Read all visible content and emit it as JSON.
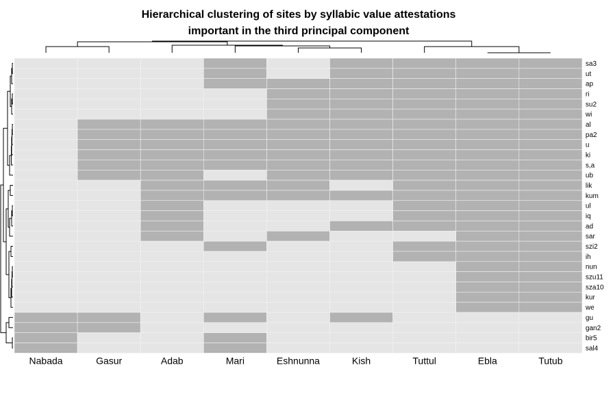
{
  "chart_data": {
    "type": "heatmap",
    "title": [
      "Hierarchical clustering of sites by syllabic value attestations",
      "important in the third principal component"
    ],
    "columns": [
      "Nabada",
      "Gasur",
      "Adab",
      "Mari",
      "Eshnunna",
      "Kish",
      "Tuttul",
      "Ebla",
      "Tutub"
    ],
    "rows": [
      "sa3",
      "ut",
      "ap",
      "ri",
      "su2",
      "wi",
      "al",
      "pa2",
      "u",
      "ki",
      "s,a",
      "ub",
      "lik",
      "kum",
      "ul",
      "iq",
      "ad",
      "sar",
      "szi2",
      "ih",
      "nun",
      "szu11",
      "sza10",
      "kur",
      "we",
      "gu",
      "gan2",
      "bir5",
      "sal4"
    ],
    "value_meaning": "1 = attested (dark grey), 0 = not attested (light grey)",
    "matrix": [
      [
        0,
        0,
        0,
        1,
        0,
        1,
        1,
        1,
        1
      ],
      [
        0,
        0,
        0,
        1,
        0,
        1,
        1,
        1,
        1
      ],
      [
        0,
        0,
        0,
        1,
        1,
        1,
        1,
        1,
        1
      ],
      [
        0,
        0,
        0,
        0,
        1,
        1,
        1,
        1,
        1
      ],
      [
        0,
        0,
        0,
        0,
        1,
        1,
        1,
        1,
        1
      ],
      [
        0,
        0,
        0,
        0,
        1,
        1,
        1,
        1,
        1
      ],
      [
        0,
        1,
        1,
        1,
        1,
        1,
        1,
        1,
        1
      ],
      [
        0,
        1,
        1,
        1,
        1,
        1,
        1,
        1,
        1
      ],
      [
        0,
        1,
        1,
        1,
        1,
        1,
        1,
        1,
        1
      ],
      [
        0,
        1,
        1,
        1,
        1,
        1,
        1,
        1,
        1
      ],
      [
        0,
        1,
        1,
        1,
        1,
        1,
        1,
        1,
        1
      ],
      [
        0,
        1,
        1,
        0,
        1,
        1,
        1,
        1,
        1
      ],
      [
        0,
        0,
        1,
        1,
        1,
        0,
        1,
        1,
        1
      ],
      [
        0,
        0,
        1,
        1,
        1,
        1,
        1,
        1,
        1
      ],
      [
        0,
        0,
        1,
        0,
        0,
        0,
        1,
        1,
        1
      ],
      [
        0,
        0,
        1,
        0,
        0,
        0,
        1,
        1,
        1
      ],
      [
        0,
        0,
        1,
        0,
        0,
        1,
        1,
        1,
        1
      ],
      [
        0,
        0,
        1,
        0,
        1,
        0,
        0,
        1,
        1
      ],
      [
        0,
        0,
        0,
        1,
        0,
        0,
        1,
        1,
        1
      ],
      [
        0,
        0,
        0,
        0,
        0,
        0,
        1,
        1,
        1
      ],
      [
        0,
        0,
        0,
        0,
        0,
        0,
        0,
        1,
        1
      ],
      [
        0,
        0,
        0,
        0,
        0,
        0,
        0,
        1,
        1
      ],
      [
        0,
        0,
        0,
        0,
        0,
        0,
        0,
        1,
        1
      ],
      [
        0,
        0,
        0,
        0,
        0,
        0,
        0,
        1,
        1
      ],
      [
        0,
        0,
        0,
        0,
        0,
        0,
        0,
        1,
        1
      ],
      [
        1,
        1,
        0,
        1,
        0,
        1,
        0,
        0,
        0
      ],
      [
        1,
        1,
        0,
        0,
        0,
        0,
        0,
        0,
        0
      ],
      [
        1,
        0,
        0,
        1,
        0,
        0,
        0,
        0,
        0
      ],
      [
        1,
        0,
        0,
        1,
        0,
        0,
        0,
        0,
        0
      ]
    ],
    "colors": {
      "present": "#b2b2b2",
      "absent": "#e5e5e5",
      "grid": "#f2f2f2",
      "dendrogram": "#000000"
    },
    "dendrograms": {
      "columns": "top",
      "rows": "left"
    },
    "legend": "none"
  }
}
